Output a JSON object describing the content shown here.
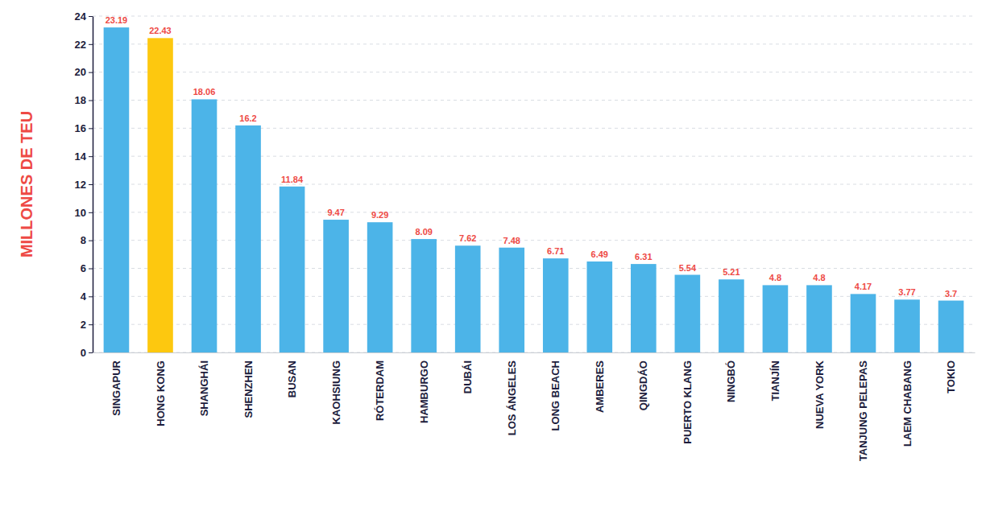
{
  "chart_data": {
    "type": "bar",
    "y_label": "MILLONES DE TEU",
    "categories": [
      "SINGAPUR",
      "HONG KONG",
      "SHANGHÁI",
      "SHENZHEN",
      "BUSAN",
      "KAOHSIUNG",
      "RÓTERDAM",
      "HAMBURGO",
      "DUBÁI",
      "LOS ÁNGELES",
      "LONG BEACH",
      "AMBERES",
      "QINGDÁO",
      "PUERTO KLANG",
      "NINGBÓ",
      "TIANJÍN",
      "NUEVA YORK",
      "TANJUNG PELEPAS",
      "LAEM CHABANG",
      "TOKIO"
    ],
    "values": [
      23.19,
      22.43,
      18.06,
      16.2,
      11.84,
      9.47,
      9.29,
      8.09,
      7.62,
      7.48,
      6.71,
      6.49,
      6.31,
      5.54,
      5.21,
      4.8,
      4.8,
      4.17,
      3.77,
      3.7
    ],
    "colors": [
      "#4cb4e8",
      "#fdc80f",
      "#4cb4e8",
      "#4cb4e8",
      "#4cb4e8",
      "#4cb4e8",
      "#4cb4e8",
      "#4cb4e8",
      "#4cb4e8",
      "#4cb4e8",
      "#4cb4e8",
      "#4cb4e8",
      "#4cb4e8",
      "#4cb4e8",
      "#4cb4e8",
      "#4cb4e8",
      "#4cb4e8",
      "#4cb4e8",
      "#4cb4e8",
      "#4cb4e8"
    ],
    "ylim": [
      0,
      24
    ],
    "yticks": [
      0,
      2,
      4,
      6,
      8,
      10,
      12,
      14,
      16,
      18,
      20,
      22,
      24
    ],
    "grid": true,
    "data_labels": true
  }
}
